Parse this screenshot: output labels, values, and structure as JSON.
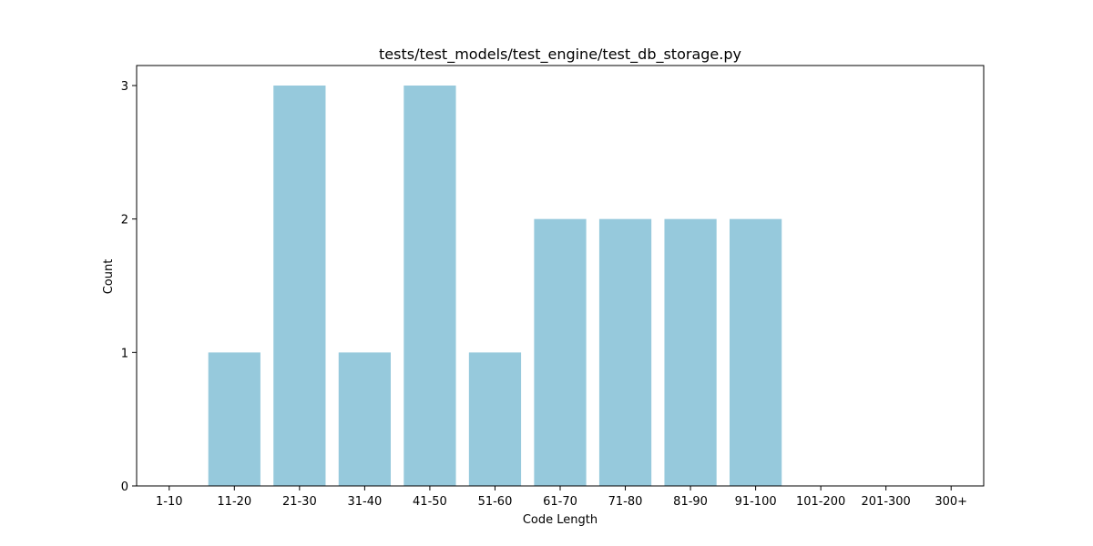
{
  "chart_data": {
    "type": "bar",
    "title": "tests/test_models/test_engine/test_db_storage.py",
    "xlabel": "Code Length",
    "ylabel": "Count",
    "categories": [
      "1-10",
      "11-20",
      "21-30",
      "31-40",
      "41-50",
      "51-60",
      "61-70",
      "71-80",
      "81-90",
      "91-100",
      "101-200",
      "201-300",
      "300+"
    ],
    "values": [
      0,
      1,
      3,
      1,
      3,
      1,
      2,
      2,
      2,
      2,
      0,
      0,
      0
    ],
    "ylim": [
      0,
      3.15
    ],
    "yticks": [
      0,
      1,
      2,
      3
    ],
    "grid": false,
    "bar_color": "#96c9dc"
  }
}
